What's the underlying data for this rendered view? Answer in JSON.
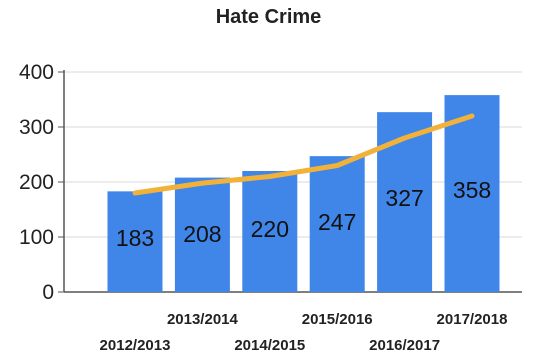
{
  "chart_data": {
    "type": "bar",
    "title": "Hate Crime",
    "categories": [
      "2012/2013",
      "2013/2014",
      "2014/2015",
      "2015/2016",
      "2016/2017",
      "2017/2018"
    ],
    "series": [
      {
        "values": [
          183,
          208,
          220,
          247,
          327,
          358
        ],
        "color": "#3f86e8",
        "kind": "bar"
      },
      {
        "values": [
          180,
          198,
          210,
          230,
          280,
          320
        ],
        "color": "#f2b23a",
        "kind": "line"
      }
    ],
    "data_labels": [
      "183",
      "208",
      "220",
      "247",
      "327",
      "358"
    ],
    "ylim": [
      0,
      400
    ],
    "yticks": [
      0,
      100,
      200,
      300,
      400
    ],
    "xlabel": "",
    "ylabel": "",
    "grid": true,
    "legend": "none"
  }
}
